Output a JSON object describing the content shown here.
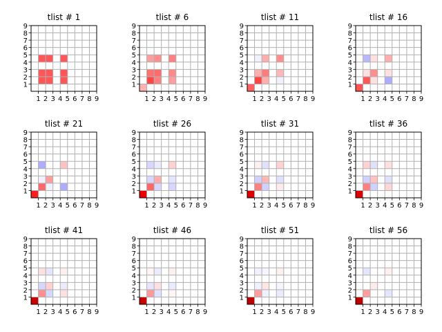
{
  "chart_data": {
    "type": "heatmap",
    "colormap": "seismic",
    "vlim": [
      -1,
      1
    ],
    "grid": true,
    "grid_size": 9,
    "xticks": [
      "1",
      "2",
      "3",
      "4",
      "5",
      "6",
      "7",
      "8",
      "9"
    ],
    "yticks": [
      "1",
      "2",
      "3",
      "4",
      "5",
      "6",
      "7",
      "8",
      "9"
    ],
    "panels": [
      {
        "title": "tlist # 1",
        "cells": [
          [
            1,
            1,
            0.33
          ],
          [
            2,
            1,
            0.33
          ],
          [
            4,
            1,
            0.33
          ],
          [
            1,
            2,
            0.33
          ],
          [
            2,
            2,
            0.33
          ],
          [
            4,
            2,
            0.33
          ],
          [
            1,
            4,
            0.33
          ],
          [
            2,
            4,
            0.33
          ],
          [
            4,
            4,
            0.33
          ]
        ]
      },
      {
        "title": "tlist # 6",
        "cells": [
          [
            0,
            0,
            0.15
          ],
          [
            1,
            1,
            0.36
          ],
          [
            2,
            1,
            0.25
          ],
          [
            4,
            1,
            0.19
          ],
          [
            1,
            2,
            0.28
          ],
          [
            2,
            2,
            0.29
          ],
          [
            4,
            2,
            0.23
          ],
          [
            1,
            4,
            0.19
          ],
          [
            2,
            4,
            0.22
          ],
          [
            4,
            4,
            0.25
          ]
        ]
      },
      {
        "title": "tlist # 11",
        "cells": [
          [
            0,
            0,
            0.31
          ],
          [
            1,
            1,
            0.37
          ],
          [
            2,
            1,
            0.16
          ],
          [
            4,
            1,
            -0.03
          ],
          [
            1,
            2,
            0.16
          ],
          [
            2,
            2,
            0.26
          ],
          [
            4,
            2,
            0.14
          ],
          [
            1,
            4,
            -0.03
          ],
          [
            2,
            4,
            0.16
          ],
          [
            4,
            4,
            0.22
          ]
        ]
      },
      {
        "title": "tlist # 16",
        "cells": [
          [
            0,
            0,
            0.34
          ],
          [
            1,
            1,
            0.33
          ],
          [
            2,
            1,
            0.06
          ],
          [
            4,
            1,
            -0.16
          ],
          [
            1,
            2,
            0.06
          ],
          [
            2,
            2,
            0.22
          ],
          [
            4,
            2,
            0.06
          ],
          [
            1,
            4,
            -0.14
          ],
          [
            2,
            4,
            0.06
          ],
          [
            4,
            4,
            0.16
          ]
        ]
      },
      {
        "title": "tlist # 21",
        "cells": [
          [
            0,
            0,
            0.44
          ],
          [
            1,
            1,
            0.3
          ],
          [
            2,
            1,
            -0.03
          ],
          [
            4,
            1,
            -0.16
          ],
          [
            1,
            2,
            -0.03
          ],
          [
            2,
            2,
            0.19
          ],
          [
            1,
            4,
            -0.16
          ],
          [
            4,
            4,
            0.12
          ]
        ]
      },
      {
        "title": "tlist # 26",
        "cells": [
          [
            0,
            0,
            0.59
          ],
          [
            1,
            1,
            0.3
          ],
          [
            2,
            1,
            -0.08
          ],
          [
            4,
            1,
            -0.08
          ],
          [
            1,
            2,
            -0.08
          ],
          [
            2,
            2,
            0.16
          ],
          [
            4,
            2,
            -0.05
          ],
          [
            1,
            4,
            -0.08
          ],
          [
            2,
            4,
            -0.04
          ],
          [
            4,
            4,
            0.09
          ]
        ]
      },
      {
        "title": "tlist # 31",
        "cells": [
          [
            0,
            0,
            0.63
          ],
          [
            1,
            1,
            0.25
          ],
          [
            2,
            1,
            -0.09
          ],
          [
            4,
            1,
            0.04
          ],
          [
            1,
            2,
            -0.09
          ],
          [
            2,
            2,
            0.14
          ],
          [
            4,
            2,
            -0.06
          ],
          [
            1,
            4,
            0.03
          ],
          [
            2,
            4,
            -0.06
          ],
          [
            4,
            4,
            0.09
          ]
        ]
      },
      {
        "title": "tlist # 36",
        "cells": [
          [
            0,
            0,
            0.63
          ],
          [
            1,
            1,
            0.25
          ],
          [
            2,
            1,
            -0.09
          ],
          [
            4,
            1,
            0.08
          ],
          [
            1,
            2,
            -0.09
          ],
          [
            2,
            2,
            0.12
          ],
          [
            4,
            2,
            -0.06
          ],
          [
            1,
            4,
            0.09
          ],
          [
            2,
            4,
            -0.06
          ],
          [
            4,
            4,
            0.06
          ]
        ]
      },
      {
        "title": "tlist # 41",
        "cells": [
          [
            0,
            0,
            0.7
          ],
          [
            1,
            1,
            0.22
          ],
          [
            2,
            1,
            -0.08
          ],
          [
            4,
            1,
            0.06
          ],
          [
            1,
            2,
            -0.08
          ],
          [
            2,
            2,
            0.09
          ],
          [
            4,
            2,
            -0.04
          ],
          [
            1,
            4,
            0.06
          ],
          [
            2,
            4,
            -0.05
          ],
          [
            4,
            4,
            0.03
          ]
        ]
      },
      {
        "title": "tlist # 46",
        "cells": [
          [
            0,
            0,
            0.72
          ],
          [
            1,
            1,
            0.2
          ],
          [
            2,
            1,
            -0.06
          ],
          [
            4,
            1,
            0.02
          ],
          [
            1,
            2,
            -0.05
          ],
          [
            2,
            2,
            0.06
          ],
          [
            4,
            2,
            -0.04
          ],
          [
            1,
            4,
            0.02
          ],
          [
            2,
            4,
            -0.04
          ],
          [
            4,
            4,
            0.03
          ]
        ]
      },
      {
        "title": "tlist # 51",
        "cells": [
          [
            0,
            0,
            0.75
          ],
          [
            1,
            1,
            0.19
          ],
          [
            2,
            1,
            -0.03
          ],
          [
            4,
            1,
            -0.04
          ],
          [
            1,
            2,
            -0.03
          ],
          [
            2,
            2,
            0.05
          ],
          [
            4,
            2,
            -0.02
          ],
          [
            1,
            4,
            -0.03
          ],
          [
            2,
            4,
            -0.02
          ],
          [
            4,
            4,
            0.03
          ]
        ]
      },
      {
        "title": "tlist # 56",
        "cells": [
          [
            0,
            0,
            0.75
          ],
          [
            1,
            1,
            0.19
          ],
          [
            4,
            1,
            -0.05
          ],
          [
            2,
            2,
            0.04
          ],
          [
            1,
            4,
            -0.05
          ],
          [
            4,
            4,
            0.03
          ]
        ]
      }
    ]
  }
}
